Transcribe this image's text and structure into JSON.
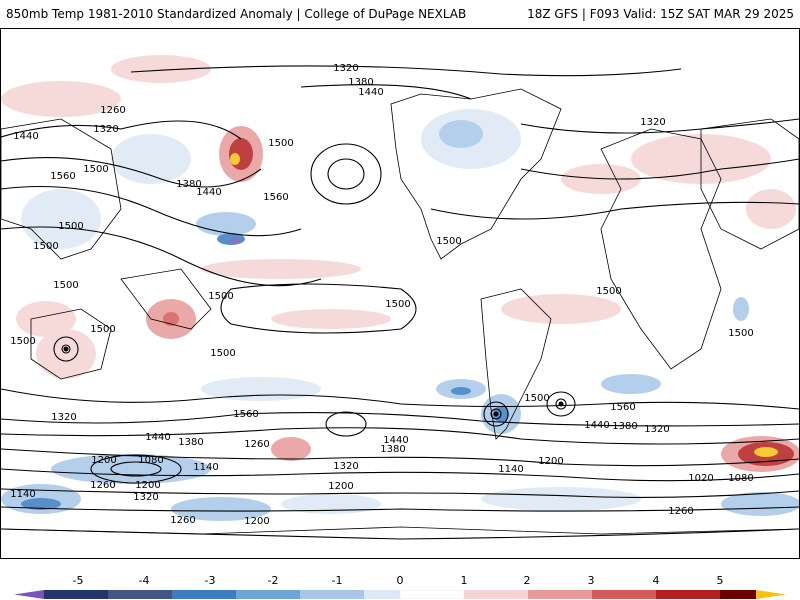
{
  "header": {
    "left_title": "850mb Temp 1981-2010 Standardized Anomaly | College of DuPage NEXLAB",
    "right_title": "18Z GFS | F093 Valid: 15Z SAT MAR 29 2025"
  },
  "map": {
    "contour_labels": [
      "1320",
      "1380",
      "1440",
      "1260",
      "1320",
      "1440",
      "1500",
      "1560",
      "1380",
      "1440",
      "1500",
      "1560",
      "1500",
      "1500",
      "1500",
      "1500",
      "1500",
      "1500",
      "1500",
      "1500",
      "1500",
      "1500",
      "1500",
      "1560",
      "1320",
      "1440",
      "1380",
      "1260",
      "1080",
      "1140",
      "1200",
      "1320",
      "1260",
      "1140",
      "1200",
      "1320",
      "1260",
      "1200",
      "1200",
      "1200",
      "1140",
      "1080",
      "1020",
      "1260",
      "1320",
      "1380",
      "1440",
      "1500",
      "1560",
      "1440",
      "1380",
      "1320"
    ],
    "colors": {
      "ocean_neutral": "#ffffff",
      "coast": "#000000",
      "contour": "#000000"
    }
  },
  "colorbar": {
    "ticks": [
      "-5",
      "-4",
      "-3",
      "-2",
      "-1",
      "0",
      "1",
      "2",
      "3",
      "4",
      "5"
    ],
    "colors": [
      "#7b54b8",
      "#22386b",
      "#3a7dc0",
      "#6fa5d6",
      "#a8c7e8",
      "#dbe8f5",
      "#ffffff",
      "#f5d4d4",
      "#e89a9a",
      "#d55b5b",
      "#b51f1f",
      "#6b0000",
      "#f5c211"
    ]
  }
}
